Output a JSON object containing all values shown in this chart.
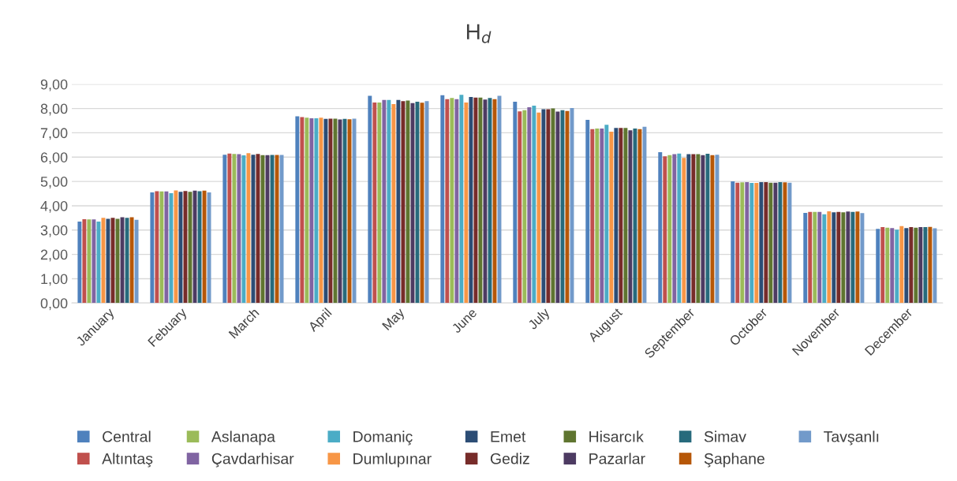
{
  "chart_data": {
    "type": "bar",
    "title": "H$_{d}$",
    "categories": [
      "January",
      "Febuary",
      "March",
      "April",
      "May",
      "June",
      "July",
      "August",
      "September",
      "October",
      "November",
      "December"
    ],
    "series": [
      {
        "name": "Central",
        "color": "#4f81bd",
        "values": [
          3.35,
          4.55,
          6.1,
          7.68,
          8.52,
          8.55,
          8.28,
          7.53,
          6.2,
          5.0,
          3.71,
          3.05
        ]
      },
      {
        "name": "Altıntaş",
        "color": "#c0504d",
        "values": [
          3.45,
          4.6,
          6.15,
          7.65,
          8.25,
          8.38,
          7.88,
          7.15,
          6.03,
          4.95,
          3.75,
          3.12
        ]
      },
      {
        "name": "Aslanapa",
        "color": "#9bbb59",
        "values": [
          3.44,
          4.59,
          6.13,
          7.62,
          8.25,
          8.43,
          7.93,
          7.18,
          6.08,
          4.96,
          3.75,
          3.1
        ]
      },
      {
        "name": "Çavdarhisar",
        "color": "#8064a2",
        "values": [
          3.44,
          4.59,
          6.12,
          7.6,
          8.35,
          8.38,
          8.05,
          7.18,
          6.12,
          4.97,
          3.75,
          3.08
        ]
      },
      {
        "name": "Domaniç",
        "color": "#4bacc6",
        "values": [
          3.35,
          4.52,
          6.07,
          7.6,
          8.35,
          8.56,
          8.12,
          7.33,
          6.15,
          4.94,
          3.65,
          3.02
        ]
      },
      {
        "name": "Dumlupınar",
        "color": "#f79646",
        "values": [
          3.5,
          4.63,
          6.16,
          7.62,
          8.18,
          8.25,
          7.83,
          7.05,
          5.97,
          4.94,
          3.77,
          3.16
        ]
      },
      {
        "name": "Emet",
        "color": "#2c4d75",
        "values": [
          3.46,
          4.57,
          6.1,
          7.57,
          8.35,
          8.47,
          7.97,
          7.2,
          6.12,
          4.97,
          3.73,
          3.08
        ]
      },
      {
        "name": "Gediz",
        "color": "#772c2a",
        "values": [
          3.5,
          4.61,
          6.13,
          7.58,
          8.3,
          8.45,
          7.97,
          7.2,
          6.12,
          4.97,
          3.75,
          3.12
        ]
      },
      {
        "name": "Hisarcık",
        "color": "#5f7530",
        "values": [
          3.46,
          4.57,
          6.08,
          7.58,
          8.33,
          8.45,
          8.0,
          7.2,
          6.12,
          4.95,
          3.73,
          3.1
        ]
      },
      {
        "name": "Pazarlar",
        "color": "#4d3b62",
        "values": [
          3.53,
          4.62,
          6.08,
          7.55,
          8.22,
          8.37,
          7.87,
          7.1,
          6.08,
          4.95,
          3.76,
          3.12
        ]
      },
      {
        "name": "Simav",
        "color": "#276a7c",
        "values": [
          3.5,
          4.6,
          6.09,
          7.57,
          8.28,
          8.43,
          7.93,
          7.18,
          6.14,
          4.97,
          3.75,
          3.12
        ]
      },
      {
        "name": "Şaphane",
        "color": "#b65708",
        "values": [
          3.53,
          4.62,
          6.09,
          7.56,
          8.24,
          8.38,
          7.9,
          7.15,
          6.08,
          4.96,
          3.76,
          3.13
        ]
      },
      {
        "name": "Tavşanlı",
        "color": "#729aca",
        "values": [
          3.42,
          4.55,
          6.09,
          7.58,
          8.3,
          8.52,
          8.02,
          7.25,
          6.1,
          4.95,
          3.7,
          3.07
        ]
      }
    ],
    "ylim": [
      0,
      9
    ],
    "yticks": [
      {
        "value": 0,
        "label": "0,00"
      },
      {
        "value": 1,
        "label": "1,00"
      },
      {
        "value": 2,
        "label": "2,00"
      },
      {
        "value": 3,
        "label": "3,00"
      },
      {
        "value": 4,
        "label": "4,00"
      },
      {
        "value": 5,
        "label": "5,00"
      },
      {
        "value": 6,
        "label": "6,00"
      },
      {
        "value": 7,
        "label": "7,00"
      },
      {
        "value": 8,
        "label": "8,00"
      },
      {
        "value": 9,
        "label": "9,00"
      }
    ],
    "grid": "y",
    "legend": "bottom"
  }
}
